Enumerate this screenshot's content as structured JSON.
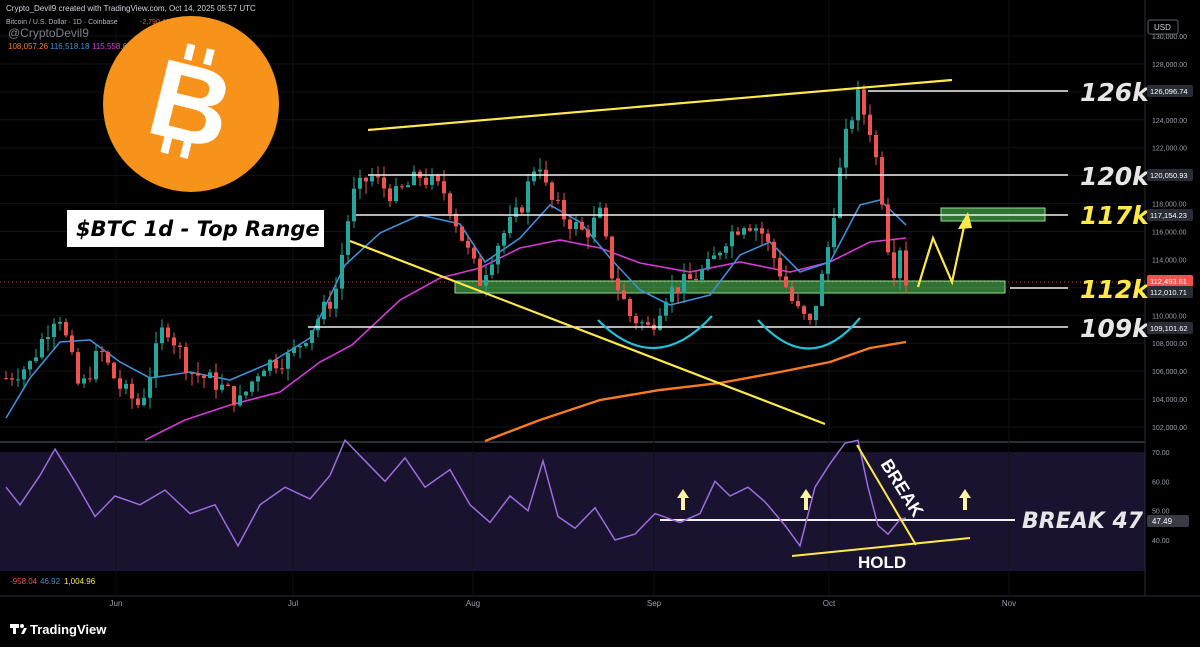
{
  "header": {
    "created_by": "Crypto_Devil9 created with TradingView.com, Oct 14, 2025 05:57 UTC",
    "symbol_line": "Bitcoin / U.S. Dollar · 1D · Coinbase",
    "change": "-2,790.42 (-2.41%)",
    "watermark": "@CryptoDevil9",
    "ma_values": [
      "108,057.26",
      "116,518.18",
      "115,558.67"
    ],
    "ma_colors": [
      "#f57c1f",
      "#3d8fd9",
      "#d43ad4"
    ]
  },
  "title_box": "$BTC 1d - Top Range",
  "currency": "USD",
  "logo": {
    "glyph": "B",
    "color": "#f7931a"
  },
  "chart_data": [
    {
      "type": "candlestick",
      "x_ticks": [
        "Jun",
        "Jul",
        "Aug",
        "Sep",
        "Oct",
        "Nov"
      ],
      "ylim": [
        101000,
        131000
      ],
      "y_ticks": [
        102000,
        104000,
        106000,
        108000,
        110000,
        112000,
        114000,
        116000,
        118000,
        120000,
        122000,
        124000,
        126000,
        128000,
        130000
      ],
      "y_tick_labels": [
        "102,000.00",
        "104,000.00",
        "106,000.00",
        "108,000.00",
        "110,000.00",
        "112,000.00",
        "114,000.00",
        "116,000.00",
        "118,000.00",
        "120,000.00",
        "122,000.00",
        "124,000.00",
        "126,000.00",
        "128,000.00",
        "130,000.00"
      ],
      "price_tags": [
        {
          "text": "126,096.74",
          "value": 126096.74,
          "style": "dark"
        },
        {
          "text": "120,050.93",
          "value": 120050.93,
          "style": "dark"
        },
        {
          "text": "117,154.23",
          "value": 117154.23,
          "style": "dark"
        },
        {
          "text": "112,493.61",
          "value": 112493.61,
          "style": "red"
        },
        {
          "text": "112,010.71",
          "value": 112010.71,
          "style": "dark"
        },
        {
          "text": "109,101.62",
          "value": 109101.62,
          "style": "dark"
        }
      ],
      "level_labels": [
        {
          "text": "126k",
          "value": 126096,
          "color": "#e6e6e6"
        },
        {
          "text": "120k",
          "value": 120050,
          "color": "#e6e6e6"
        },
        {
          "text": "117k",
          "value": 117154,
          "color": "#ffe94a"
        },
        {
          "text": "112k",
          "value": 112010,
          "color": "#ffe94a"
        },
        {
          "text": "109k",
          "value": 109101,
          "color": "#e6e6e6"
        }
      ],
      "colors": {
        "up": "#26a69a",
        "down": "#ef5350"
      }
    },
    {
      "type": "line",
      "name": "RSI",
      "ylim": [
        30,
        75
      ],
      "y_tick_labels": [
        "70.00",
        "60.00",
        "50.00",
        "40.00"
      ],
      "y_ticks": [
        70,
        60,
        50,
        40
      ],
      "current_tag": "47.49",
      "legend_values": [
        "-958.04",
        "46.92",
        "1,004.96"
      ],
      "annotations": [
        "BREAK 47",
        "BREAK",
        "HOLD"
      ],
      "color": "#9b6ddd"
    }
  ],
  "footer": {
    "brand": "TradingView"
  }
}
